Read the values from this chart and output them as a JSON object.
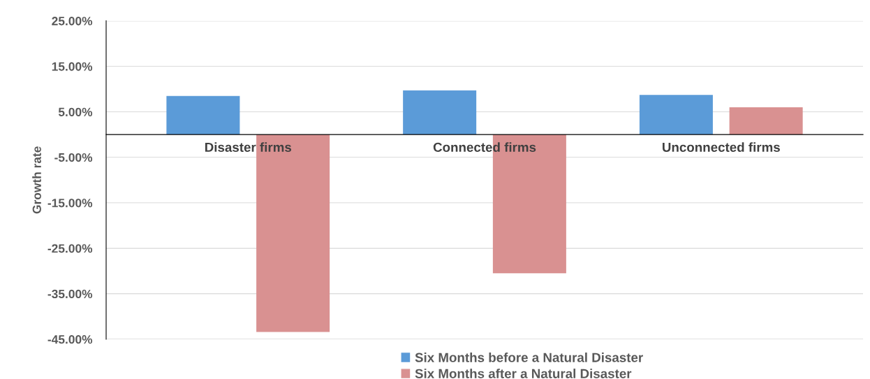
{
  "chart_data": {
    "type": "bar",
    "ylabel": "Growth rate",
    "categories": [
      "Disaster firms",
      "Connected firms",
      "Unconnected firms"
    ],
    "series": [
      {
        "name": "Six Months before a Natural Disaster",
        "color": "#5b9bd8",
        "values": [
          8.5,
          9.7,
          8.7
        ]
      },
      {
        "name": "Six Months after a Natural Disaster",
        "color": "#d99191",
        "values": [
          -43.4,
          -30.5,
          6.0
        ]
      }
    ],
    "ylim": [
      -45,
      25
    ],
    "yticks": [
      {
        "value": -45,
        "label": "-45.00%"
      },
      {
        "value": -35,
        "label": "-35.00%"
      },
      {
        "value": -25,
        "label": "-25.00%"
      },
      {
        "value": -15,
        "label": "-15.00%"
      },
      {
        "value": -5,
        "label": "-5.00%"
      },
      {
        "value": 5,
        "label": "5.00%"
      },
      {
        "value": 15,
        "label": "15.00%"
      },
      {
        "value": 25,
        "label": "25.00%"
      }
    ],
    "grid": "y",
    "legend": "bottom"
  }
}
